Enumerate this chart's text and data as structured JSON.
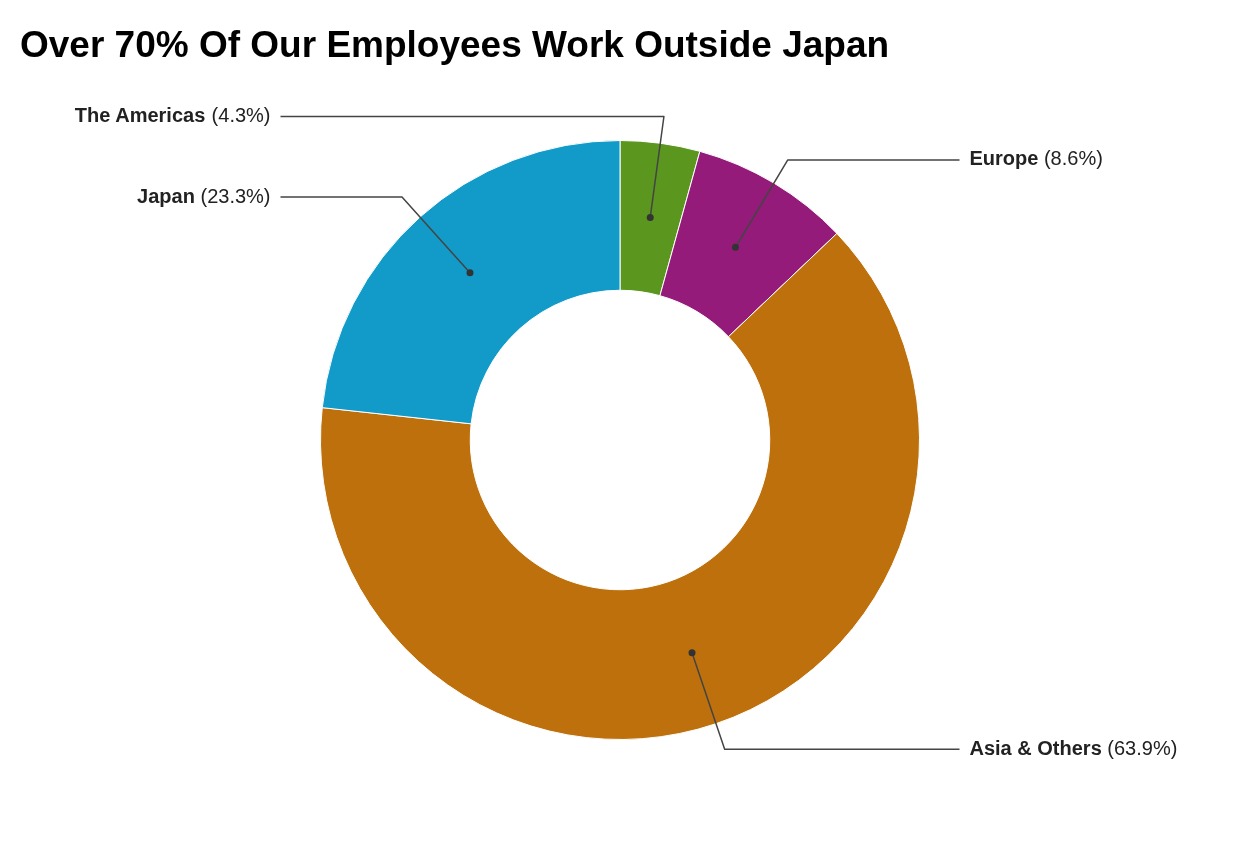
{
  "chart_data": {
    "type": "donut",
    "title": "Over 70% Of Our Employees Work Outside Japan",
    "categories": [
      "The Americas",
      "Europe",
      "Asia & Others",
      "Japan"
    ],
    "values": [
      4.3,
      8.6,
      63.9,
      23.3
    ],
    "value_labels": [
      "(4.3%)",
      "(8.6%)",
      "(63.9%)",
      "(23.3%)"
    ],
    "colors": [
      "#5b961f",
      "#941b7a",
      "#bd700c",
      "#129bc9"
    ],
    "legend": false
  }
}
